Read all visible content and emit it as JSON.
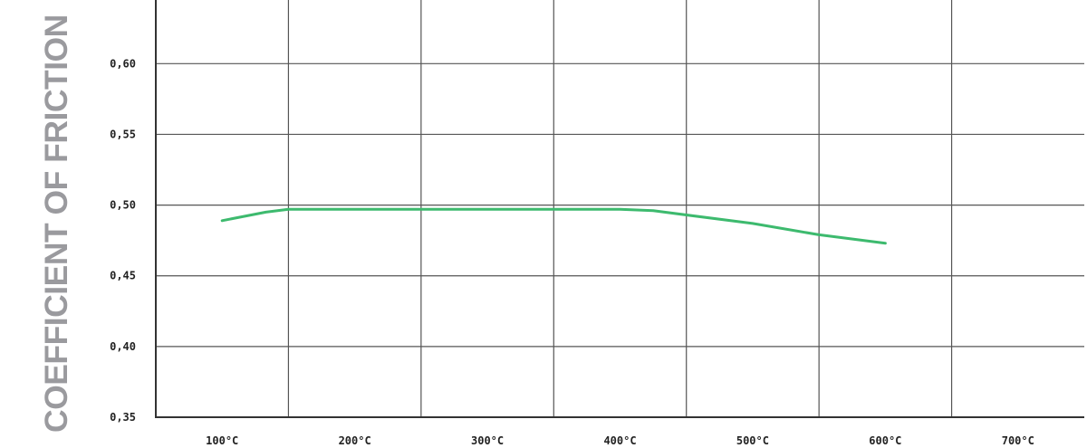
{
  "chart_data": {
    "type": "line",
    "title": "",
    "xlabel": "",
    "ylabel": "COEFFICIENT OF FRICTION",
    "x_ticks": [
      "100°C",
      "200°C",
      "300°C",
      "400°C",
      "500°C",
      "600°C",
      "700°C"
    ],
    "y_ticks": [
      "0,35",
      "0,40",
      "0,45",
      "0,50",
      "0,55",
      "0,60"
    ],
    "xlim": [
      50,
      750
    ],
    "ylim": [
      0.35,
      0.645
    ],
    "grid": true,
    "color": "#3dba6e",
    "series": [
      {
        "x": [
          100,
          133,
          150,
          200,
          300,
          400,
          425,
          500,
          550,
          600
        ],
        "y": [
          0.489,
          0.495,
          0.497,
          0.497,
          0.497,
          0.497,
          0.496,
          0.487,
          0.479,
          0.473
        ]
      }
    ]
  }
}
